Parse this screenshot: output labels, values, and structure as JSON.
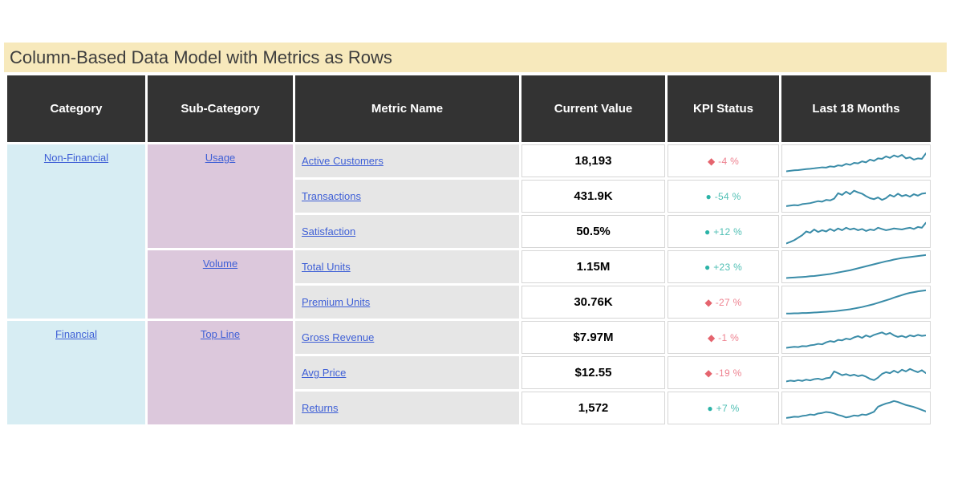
{
  "colors": {
    "title_bar_bg": "#f7e9bc",
    "title_text": "#3d3d3d",
    "header_bg": "#333333",
    "header_text": "#ffffff",
    "category_bg": "#d7edf3",
    "subcategory_bg": "#dcc8dc",
    "metric_bg": "#e6e6e6",
    "link_color": "#3e5fd6",
    "value_cell_border": "#d6d6d6",
    "kpi_bad_icon": "#e5646e",
    "kpi_bad_text": "#ee8290",
    "kpi_good_icon": "#2bb3a7",
    "kpi_good_text": "#4fbfb4",
    "sparkline_color": "#3a8ca8"
  },
  "chart_data": {
    "type": "table",
    "title": "Column-Based Data Model with Metrics as Rows",
    "columns": [
      "Category",
      "Sub-Category",
      "Metric Name",
      "Current Value",
      "KPI Status",
      "Last 18 Months"
    ],
    "category_groups": [
      {
        "label": "Non-Financial",
        "rowspan": 5
      },
      {
        "label": "Financial",
        "rowspan": 3
      }
    ],
    "subcategory_groups": [
      {
        "label": "Usage",
        "rowspan": 3
      },
      {
        "label": "Volume",
        "rowspan": 2
      },
      {
        "label": "Top Line",
        "rowspan": 3
      }
    ],
    "rows": [
      {
        "category": "Non-Financial",
        "subcategory": "Usage",
        "metric": "Active Customers",
        "current_value": "18,193",
        "kpi_status": "-4 %",
        "kpi_icon": "diamond",
        "kpi_sentiment": "bad",
        "sparkline_normalized": [
          8,
          10,
          12,
          13,
          15,
          17,
          18,
          20,
          22,
          24,
          23,
          28,
          26,
          32,
          30,
          38,
          34,
          42,
          40,
          48,
          44,
          55,
          50,
          60,
          58,
          68,
          62,
          72,
          66,
          74,
          60,
          64,
          55,
          60,
          58,
          80
        ]
      },
      {
        "category": "Non-Financial",
        "subcategory": "Usage",
        "metric": "Transactions",
        "current_value": "431.9K",
        "kpi_status": "-54 %",
        "kpi_icon": "circle",
        "kpi_sentiment": "good",
        "sparkline_normalized": [
          10,
          12,
          14,
          13,
          18,
          20,
          22,
          26,
          30,
          28,
          35,
          33,
          40,
          62,
          55,
          68,
          58,
          72,
          65,
          60,
          50,
          42,
          38,
          45,
          35,
          42,
          55,
          48,
          60,
          50,
          55,
          48,
          58,
          52,
          60,
          62
        ]
      },
      {
        "category": "Non-Financial",
        "subcategory": "Usage",
        "metric": "Satisfaction",
        "current_value": "50.5%",
        "kpi_status": "+12 %",
        "kpi_icon": "circle",
        "kpi_sentiment": "good",
        "sparkline_normalized": [
          2,
          8,
          15,
          25,
          35,
          50,
          45,
          58,
          48,
          55,
          50,
          60,
          52,
          62,
          55,
          65,
          58,
          62,
          55,
          60,
          52,
          58,
          55,
          65,
          60,
          55,
          58,
          62,
          60,
          58,
          62,
          65,
          60,
          68,
          65,
          85
        ]
      },
      {
        "category": "Non-Financial",
        "subcategory": "Volume",
        "metric": "Total Units",
        "current_value": "1.15M",
        "kpi_status": "+23 %",
        "kpi_icon": "circle",
        "kpi_sentiment": "good",
        "sparkline_normalized": [
          5,
          6,
          7,
          8,
          9,
          10,
          12,
          13,
          15,
          17,
          19,
          21,
          24,
          27,
          30,
          33,
          36,
          40,
          44,
          48,
          52,
          56,
          60,
          64,
          68,
          72,
          75,
          79,
          82,
          85,
          87,
          89,
          91,
          93,
          95,
          97
        ]
      },
      {
        "category": "Non-Financial",
        "subcategory": "Volume",
        "metric": "Premium Units",
        "current_value": "30.76K",
        "kpi_status": "-27 %",
        "kpi_icon": "diamond",
        "kpi_sentiment": "bad",
        "sparkline_normalized": [
          4,
          4,
          5,
          5,
          6,
          6,
          7,
          8,
          9,
          10,
          11,
          12,
          13,
          15,
          17,
          19,
          21,
          24,
          27,
          30,
          34,
          38,
          42,
          47,
          52,
          57,
          62,
          68,
          73,
          78,
          83,
          87,
          90,
          93,
          95,
          97
        ]
      },
      {
        "category": "Financial",
        "subcategory": "Top Line",
        "metric": "Gross Revenue",
        "current_value": "$7.97M",
        "kpi_status": "-1 %",
        "kpi_icon": "diamond",
        "kpi_sentiment": "bad",
        "sparkline_normalized": [
          8,
          10,
          12,
          11,
          15,
          14,
          18,
          20,
          24,
          22,
          30,
          35,
          32,
          40,
          38,
          45,
          42,
          50,
          55,
          48,
          58,
          52,
          60,
          65,
          70,
          62,
          68,
          58,
          52,
          56,
          50,
          58,
          54,
          60,
          56,
          58
        ]
      },
      {
        "category": "Financial",
        "subcategory": "Top Line",
        "metric": "Avg Price",
        "current_value": "$12.55",
        "kpi_status": "-19 %",
        "kpi_icon": "diamond",
        "kpi_sentiment": "bad",
        "sparkline_normalized": [
          15,
          18,
          16,
          20,
          17,
          22,
          19,
          24,
          26,
          22,
          28,
          30,
          55,
          48,
          40,
          44,
          38,
          42,
          36,
          40,
          34,
          25,
          20,
          30,
          45,
          52,
          48,
          58,
          50,
          62,
          55,
          65,
          58,
          52,
          60,
          48
        ]
      },
      {
        "category": "Financial",
        "subcategory": "Top Line",
        "metric": "Returns",
        "current_value": "1,572",
        "kpi_status": "+7 %",
        "kpi_icon": "circle",
        "kpi_sentiment": "good",
        "sparkline_normalized": [
          10,
          12,
          15,
          14,
          18,
          20,
          24,
          22,
          28,
          30,
          34,
          32,
          28,
          22,
          18,
          12,
          15,
          20,
          18,
          24,
          22,
          28,
          35,
          55,
          62,
          68,
          72,
          78,
          74,
          68,
          62,
          58,
          54,
          48,
          42,
          36
        ]
      }
    ]
  }
}
